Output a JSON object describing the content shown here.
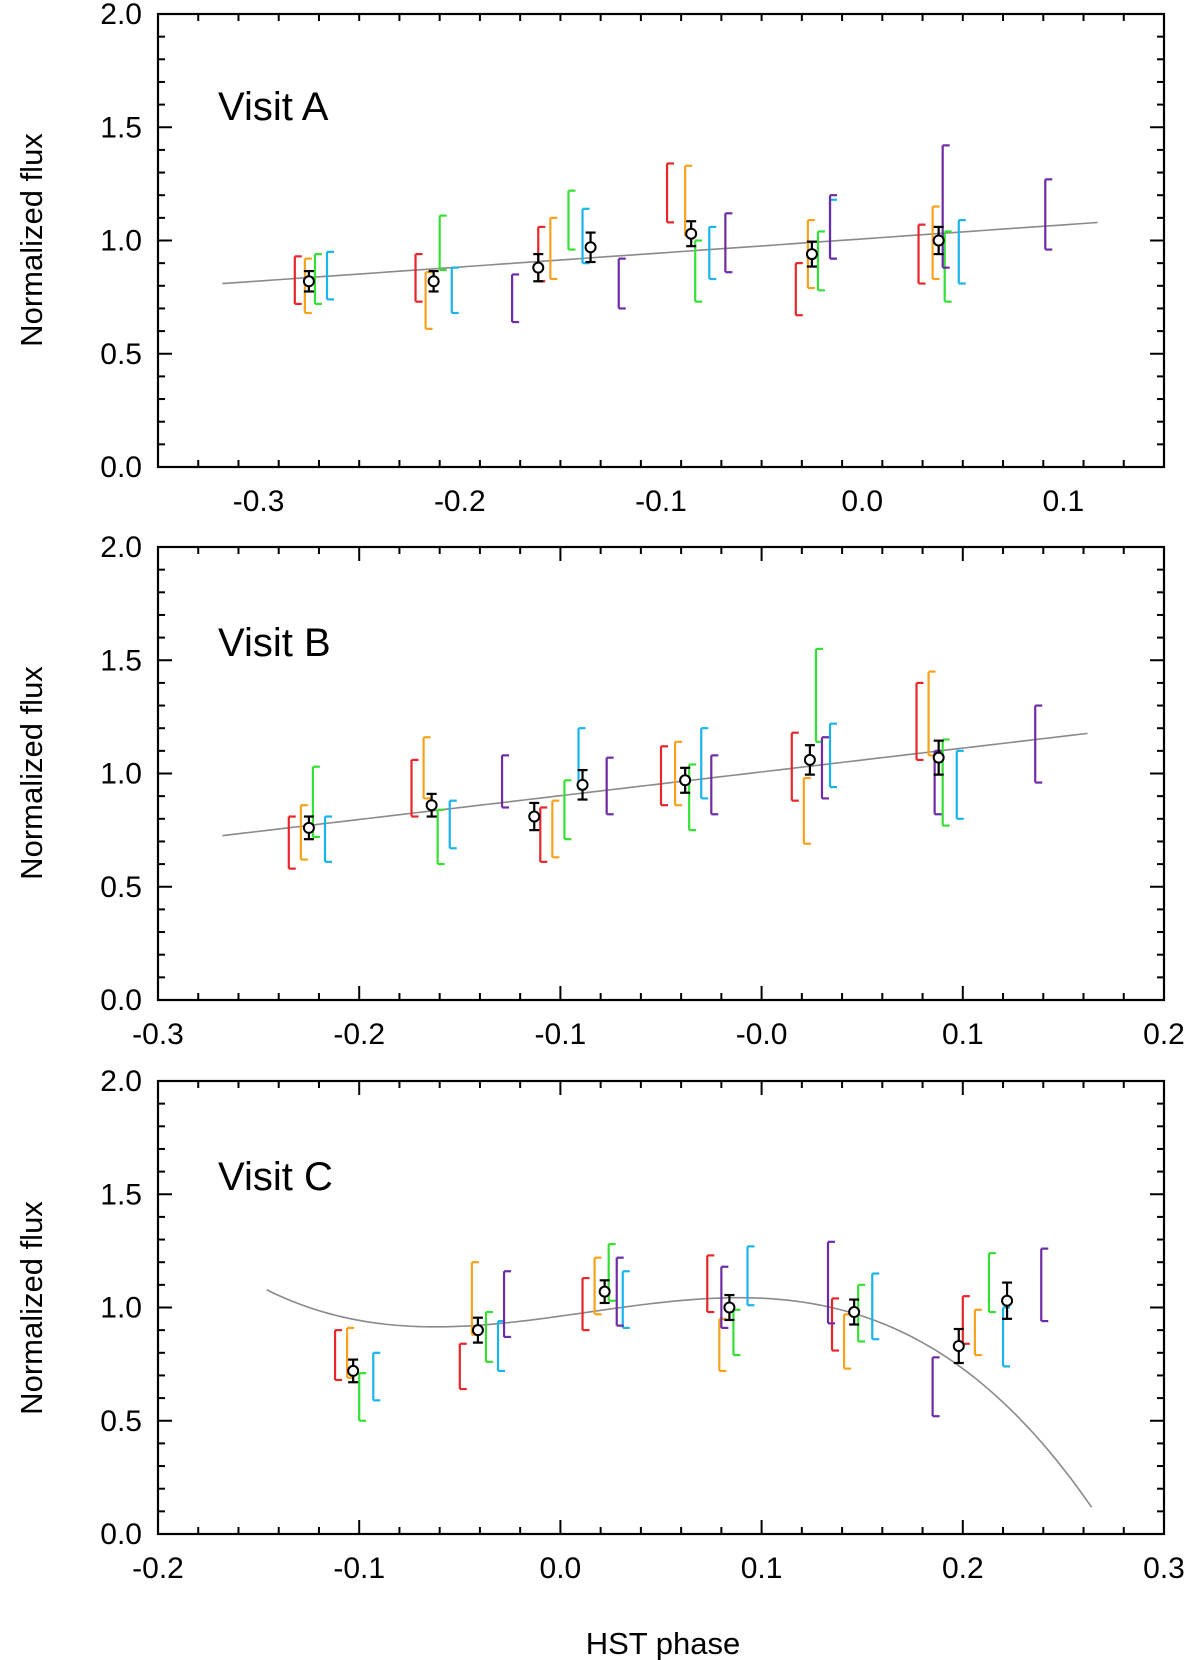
{
  "chart_data": [
    {
      "type": "scatter",
      "title": "Visit A",
      "xlabel": "",
      "ylabel": "Normalized flux",
      "xlim": [
        -0.35,
        0.15
      ],
      "ylim": [
        0.0,
        2.0
      ],
      "xticks": [
        -0.3,
        -0.2,
        -0.1,
        0.0,
        0.1
      ],
      "xtick_labels": [
        "-0.3",
        "-0.2",
        "-0.1",
        "0.0",
        "0.1"
      ],
      "yticks": [
        0.0,
        0.5,
        1.0,
        1.5,
        2.0
      ],
      "ytick_labels": [
        "0.0",
        "0.5",
        "1.0",
        "1.5",
        "2.0"
      ],
      "model": {
        "type": "linear",
        "x_range": [
          -0.318,
          0.117
        ],
        "coeffs": [
          1.007,
          0.62
        ]
      },
      "series": [
        {
          "name": "red",
          "color": "#e8262a",
          "x": [
            -0.282,
            -0.222,
            -0.161,
            -0.097,
            -0.033,
            0.028
          ],
          "low": [
            0.72,
            0.73,
            0.82,
            1.08,
            0.67,
            0.81
          ],
          "high": [
            0.93,
            0.94,
            1.06,
            1.34,
            0.9,
            1.07
          ]
        },
        {
          "name": "orange",
          "color": "#f7a21b",
          "x": [
            -0.277,
            -0.217,
            -0.155,
            -0.088,
            -0.027,
            0.035
          ],
          "low": [
            0.68,
            0.61,
            0.83,
            1.02,
            0.79,
            0.83
          ],
          "high": [
            0.92,
            0.86,
            1.1,
            1.33,
            1.09,
            1.15
          ]
        },
        {
          "name": "green",
          "color": "#35e035",
          "x": [
            -0.272,
            -0.21,
            -0.146,
            -0.083,
            -0.022,
            0.041
          ],
          "low": [
            0.72,
            0.87,
            0.96,
            0.73,
            0.78,
            0.73
          ],
          "high": [
            0.94,
            1.11,
            1.22,
            1.0,
            1.04,
            1.04
          ]
        },
        {
          "name": "cyan",
          "color": "#19b5ea",
          "x": [
            -0.266,
            -0.204,
            -0.139,
            -0.076,
            -0.016,
            0.048
          ],
          "low": [
            0.74,
            0.68,
            0.9,
            0.83,
            0.92,
            0.81
          ],
          "high": [
            0.95,
            0.88,
            1.14,
            1.06,
            1.18,
            1.09
          ]
        },
        {
          "name": "purple",
          "color": "#6e2ba6",
          "x": [
            -0.174,
            -0.121,
            -0.068,
            -0.016,
            0.04,
            0.091
          ],
          "low": [
            0.64,
            0.7,
            0.86,
            0.92,
            0.88,
            0.96
          ],
          "high": [
            0.85,
            0.92,
            1.12,
            1.2,
            1.42,
            1.27
          ]
        }
      ],
      "means": {
        "x": [
          -0.275,
          -0.213,
          -0.161,
          -0.135,
          -0.085,
          -0.025,
          0.038
        ],
        "y": [
          0.82,
          0.82,
          0.88,
          0.97,
          1.03,
          0.94,
          1.0
        ],
        "err": [
          0.045,
          0.045,
          0.06,
          0.065,
          0.055,
          0.055,
          0.06
        ]
      }
    },
    {
      "type": "scatter",
      "title": "Visit B",
      "xlabel": "",
      "ylabel": "Normalized flux",
      "xlim": [
        -0.3,
        0.2
      ],
      "ylim": [
        0.0,
        2.0
      ],
      "xticks": [
        -0.3,
        -0.2,
        -0.1,
        0.0,
        0.1,
        0.2
      ],
      "xtick_labels": [
        "-0.3",
        "-0.2",
        "-0.1",
        "-0.0",
        "0.1",
        "0.2"
      ],
      "yticks": [
        0.0,
        0.5,
        1.0,
        1.5,
        2.0
      ],
      "ytick_labels": [
        "0.0",
        "0.5",
        "1.0",
        "1.5",
        "2.0"
      ],
      "model": {
        "type": "linear",
        "x_range": [
          -0.268,
          0.162
        ],
        "coeffs": [
          1.007,
          1.05
        ]
      },
      "series": [
        {
          "name": "red",
          "color": "#e8262a",
          "x": [
            -0.235,
            -0.174,
            -0.11,
            -0.05,
            0.015,
            0.077
          ],
          "low": [
            0.58,
            0.81,
            0.61,
            0.86,
            0.88,
            1.06
          ],
          "high": [
            0.81,
            1.06,
            0.85,
            1.12,
            1.18,
            1.4
          ]
        },
        {
          "name": "orange",
          "color": "#f7a21b",
          "x": [
            -0.229,
            -0.168,
            -0.104,
            -0.043,
            0.021,
            0.083
          ],
          "low": [
            0.62,
            0.89,
            0.63,
            0.86,
            0.69,
            1.08
          ],
          "high": [
            0.86,
            1.16,
            0.88,
            1.14,
            0.98,
            1.45
          ]
        },
        {
          "name": "green",
          "color": "#35e035",
          "x": [
            -0.223,
            -0.161,
            -0.098,
            -0.036,
            0.027,
            0.09
          ],
          "low": [
            0.72,
            0.6,
            0.71,
            0.75,
            1.14,
            0.77
          ],
          "high": [
            1.03,
            0.84,
            0.97,
            1.04,
            1.55,
            1.15
          ]
        },
        {
          "name": "cyan",
          "color": "#19b5ea",
          "x": [
            -0.217,
            -0.155,
            -0.091,
            -0.03,
            0.034,
            0.097
          ],
          "low": [
            0.61,
            0.67,
            0.93,
            0.89,
            0.94,
            0.8
          ],
          "high": [
            0.81,
            0.88,
            1.2,
            1.2,
            1.22,
            1.1
          ]
        },
        {
          "name": "purple",
          "color": "#6e2ba6",
          "x": [
            -0.129,
            -0.077,
            -0.025,
            0.03,
            0.086,
            0.136
          ],
          "low": [
            0.85,
            0.82,
            0.82,
            0.89,
            0.82,
            0.96
          ],
          "high": [
            1.08,
            1.07,
            1.08,
            1.16,
            1.1,
            1.3
          ]
        }
      ],
      "means": {
        "x": [
          -0.225,
          -0.164,
          -0.113,
          -0.089,
          -0.038,
          0.024,
          0.088
        ],
        "y": [
          0.76,
          0.86,
          0.81,
          0.95,
          0.97,
          1.06,
          1.07
        ],
        "err": [
          0.05,
          0.05,
          0.06,
          0.065,
          0.055,
          0.065,
          0.075
        ]
      }
    },
    {
      "type": "scatter",
      "title": "Visit C",
      "xlabel": "HST phase",
      "ylabel": "Normalized flux",
      "xlim": [
        -0.2,
        0.3
      ],
      "ylim": [
        0.0,
        2.0
      ],
      "xticks": [
        -0.2,
        -0.1,
        0.0,
        0.1,
        0.2,
        0.3
      ],
      "xtick_labels": [
        "-0.2",
        "-0.1",
        "0.0",
        "0.1",
        "0.2",
        "0.3"
      ],
      "yticks": [
        0.0,
        0.5,
        1.0,
        1.5,
        2.0
      ],
      "ytick_labels": [
        "0.0",
        "0.5",
        "1.0",
        "1.5",
        "2.0"
      ],
      "model": {
        "type": "cubic",
        "x_range": [
          -0.146,
          0.264
        ],
        "coeffs": [
          0.962,
          1.24,
          3.0,
          -75.0
        ]
      },
      "series": [
        {
          "name": "red",
          "color": "#e8262a",
          "x": [
            -0.112,
            -0.05,
            0.011,
            0.073,
            0.135,
            0.2
          ],
          "low": [
            0.68,
            0.64,
            0.9,
            0.98,
            0.81,
            0.84
          ],
          "high": [
            0.9,
            0.84,
            1.13,
            1.23,
            1.04,
            1.05
          ]
        },
        {
          "name": "orange",
          "color": "#f7a21b",
          "x": [
            -0.106,
            -0.044,
            0.017,
            0.079,
            0.141,
            0.206
          ],
          "low": [
            0.69,
            0.88,
            0.97,
            0.72,
            0.73,
            0.79
          ],
          "high": [
            0.91,
            1.2,
            1.22,
            0.95,
            0.97,
            0.99
          ]
        },
        {
          "name": "green",
          "color": "#35e035",
          "x": [
            -0.1,
            -0.037,
            0.024,
            0.086,
            0.148,
            0.213
          ],
          "low": [
            0.5,
            0.76,
            1.03,
            0.79,
            0.85,
            0.98
          ],
          "high": [
            0.71,
            0.98,
            1.28,
            0.99,
            1.1,
            1.24
          ]
        },
        {
          "name": "cyan",
          "color": "#19b5ea",
          "x": [
            -0.093,
            -0.031,
            0.031,
            0.093,
            0.155,
            0.22
          ],
          "low": [
            0.59,
            0.72,
            0.91,
            1.01,
            0.86,
            0.74
          ],
          "high": [
            0.8,
            0.94,
            1.16,
            1.27,
            1.15,
            1.0
          ]
        },
        {
          "name": "purple",
          "color": "#6e2ba6",
          "x": [
            -0.028,
            0.028,
            0.08,
            0.133,
            0.185,
            0.239
          ],
          "low": [
            0.87,
            0.92,
            0.91,
            0.93,
            0.52,
            0.94
          ],
          "high": [
            1.16,
            1.22,
            1.18,
            1.29,
            0.78,
            1.26
          ]
        }
      ],
      "means": {
        "x": [
          -0.103,
          -0.041,
          0.022,
          0.084,
          0.146,
          0.198,
          0.222
        ],
        "y": [
          0.72,
          0.9,
          1.07,
          1.0,
          0.98,
          0.83,
          1.03
        ],
        "err": [
          0.05,
          0.055,
          0.05,
          0.055,
          0.055,
          0.075,
          0.08
        ]
      }
    }
  ]
}
